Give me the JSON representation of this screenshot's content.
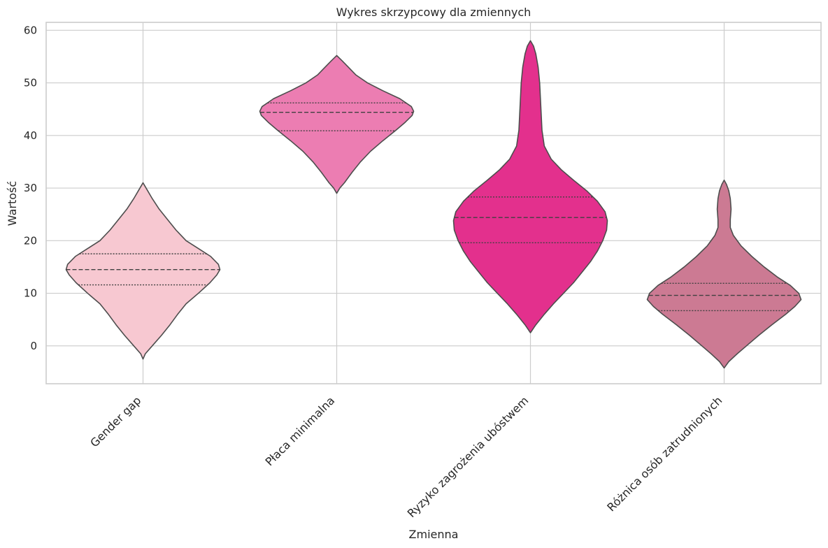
{
  "chart_data": {
    "type": "violin",
    "title": "Wykres skrzypcowy dla zmiennych",
    "xlabel": "Zmienna",
    "ylabel": "Wartość",
    "ylim": [
      -7.2,
      61.5
    ],
    "yticks": [
      0,
      10,
      20,
      30,
      40,
      50,
      60
    ],
    "grid": true,
    "inner": "quartile",
    "categories": [
      "Gender gap",
      "Płaca minimalna",
      "Ryzyko zagrożenia ubóstwem",
      "Różnica osób zatrudnionych"
    ],
    "violins": [
      {
        "category": "Gender gap",
        "color": "#f7c8d1",
        "range": [
          -2.5,
          31
        ],
        "q1": 11.6,
        "median": 14.5,
        "q3": 17.5,
        "profile": [
          [
            -2.5,
            0
          ],
          [
            -1.5,
            0.03
          ],
          [
            0,
            0.12
          ],
          [
            2,
            0.24
          ],
          [
            4,
            0.35
          ],
          [
            6,
            0.45
          ],
          [
            8,
            0.56
          ],
          [
            10,
            0.72
          ],
          [
            12,
            0.87
          ],
          [
            13.5,
            0.96
          ],
          [
            14.5,
            1.0
          ],
          [
            15.5,
            0.98
          ],
          [
            17,
            0.88
          ],
          [
            18.5,
            0.72
          ],
          [
            20,
            0.56
          ],
          [
            22,
            0.43
          ],
          [
            24,
            0.32
          ],
          [
            26,
            0.21
          ],
          [
            28,
            0.12
          ],
          [
            29.5,
            0.06
          ],
          [
            30.5,
            0.02
          ],
          [
            31,
            0
          ]
        ]
      },
      {
        "category": "Płaca minimalna",
        "color": "#ec7db2",
        "range": [
          29,
          55.2
        ],
        "q1": 40.9,
        "median": 44.4,
        "q3": 46.2,
        "profile": [
          [
            29,
            0
          ],
          [
            30,
            0.04
          ],
          [
            31,
            0.1
          ],
          [
            33,
            0.2
          ],
          [
            35,
            0.31
          ],
          [
            37,
            0.44
          ],
          [
            39,
            0.6
          ],
          [
            41,
            0.77
          ],
          [
            42.5,
            0.89
          ],
          [
            43.8,
            0.98
          ],
          [
            44.6,
            1.0
          ],
          [
            45.5,
            0.97
          ],
          [
            47,
            0.82
          ],
          [
            48.5,
            0.6
          ],
          [
            50,
            0.4
          ],
          [
            51.5,
            0.25
          ],
          [
            53,
            0.15
          ],
          [
            54.2,
            0.07
          ],
          [
            55.2,
            0
          ]
        ]
      },
      {
        "category": "Ryzyko zagrożenia ubóstwem",
        "color": "#e3308d",
        "range": [
          2.5,
          58
        ],
        "q1": 19.6,
        "median": 24.4,
        "q3": 28.3,
        "profile": [
          [
            2.5,
            0
          ],
          [
            4,
            0.07
          ],
          [
            6,
            0.18
          ],
          [
            8,
            0.3
          ],
          [
            10,
            0.43
          ],
          [
            12,
            0.56
          ],
          [
            14,
            0.67
          ],
          [
            16,
            0.78
          ],
          [
            18,
            0.87
          ],
          [
            20,
            0.94
          ],
          [
            22,
            0.99
          ],
          [
            23.8,
            1.0
          ],
          [
            25.5,
            0.97
          ],
          [
            27.5,
            0.87
          ],
          [
            29.5,
            0.73
          ],
          [
            31.5,
            0.56
          ],
          [
            33.5,
            0.4
          ],
          [
            35.5,
            0.27
          ],
          [
            38,
            0.18
          ],
          [
            41,
            0.15
          ],
          [
            44,
            0.14
          ],
          [
            47,
            0.13
          ],
          [
            50,
            0.12
          ],
          [
            53,
            0.1
          ],
          [
            55.5,
            0.07
          ],
          [
            57,
            0.04
          ],
          [
            58,
            0
          ]
        ]
      },
      {
        "category": "Różnica osób zatrudnionych",
        "color": "#cc7a93",
        "range": [
          -4.2,
          31.5
        ],
        "q1": 6.7,
        "median": 9.6,
        "q3": 11.9,
        "profile": [
          [
            -4.2,
            0
          ],
          [
            -3,
            0.06
          ],
          [
            -1.5,
            0.17
          ],
          [
            0,
            0.29
          ],
          [
            2,
            0.45
          ],
          [
            4,
            0.62
          ],
          [
            6,
            0.8
          ],
          [
            7.5,
            0.92
          ],
          [
            8.8,
            1.0
          ],
          [
            10,
            0.97
          ],
          [
            11.5,
            0.86
          ],
          [
            13,
            0.7
          ],
          [
            15,
            0.52
          ],
          [
            17,
            0.36
          ],
          [
            19,
            0.22
          ],
          [
            21,
            0.12
          ],
          [
            22.5,
            0.08
          ],
          [
            24,
            0.08
          ],
          [
            26,
            0.09
          ],
          [
            28,
            0.08
          ],
          [
            29.5,
            0.06
          ],
          [
            30.7,
            0.03
          ],
          [
            31.5,
            0
          ]
        ]
      }
    ]
  }
}
